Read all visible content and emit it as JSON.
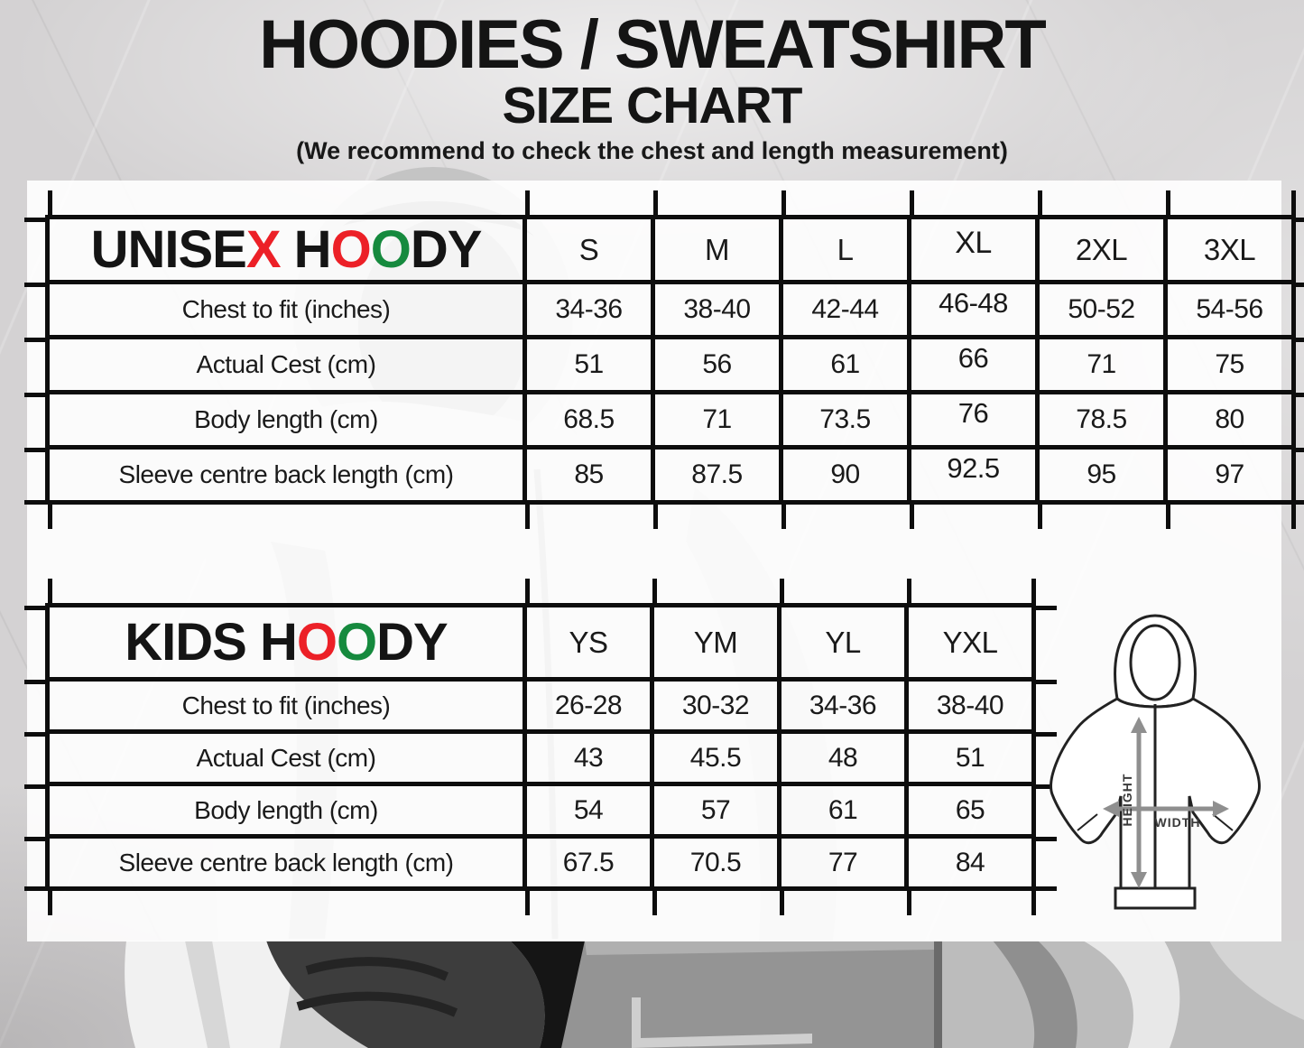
{
  "page": {
    "title_line1": "HOODIES / SWEATSHIRT",
    "title_line2": "SIZE CHART",
    "subtitle": "(We recommend to check the chest and length measurement)"
  },
  "colors": {
    "accent_red": "#ec2027",
    "accent_green": "#168a3e",
    "text_black": "#141414",
    "grid_line": "#0d0d0d",
    "arrow_gray": "#8f8f8f"
  },
  "chart_data": [
    {
      "type": "table",
      "title": "UNISEX HOODY",
      "title_segments": [
        {
          "t": "UNISE",
          "c": "#141414"
        },
        {
          "t": "X",
          "c": "#ec2027"
        },
        {
          "t": " H",
          "c": "#141414"
        },
        {
          "t": "O",
          "c": "#ec2027"
        },
        {
          "t": "O",
          "c": "#168a3e"
        },
        {
          "t": "DY",
          "c": "#141414"
        }
      ],
      "columns": [
        "S",
        "M",
        "L",
        "XL",
        "2XL",
        "3XL"
      ],
      "rows": [
        {
          "label": "Chest to fit (inches)",
          "values": [
            "34-36",
            "38-40",
            "42-44",
            "46-48",
            "50-52",
            "54-56"
          ]
        },
        {
          "label": "Actual Cest (cm)",
          "values": [
            "51",
            "56",
            "61",
            "66",
            "71",
            "75"
          ]
        },
        {
          "label": "Body length (cm)",
          "values": [
            "68.5",
            "71",
            "73.5",
            "76",
            "78.5",
            "80"
          ]
        },
        {
          "label": "Sleeve centre back length (cm)",
          "values": [
            "85",
            "87.5",
            "90",
            "92.5",
            "95",
            "97"
          ]
        }
      ]
    },
    {
      "type": "table",
      "title": "KIDS HOODY",
      "title_segments": [
        {
          "t": "KIDS H",
          "c": "#141414"
        },
        {
          "t": "O",
          "c": "#ec2027"
        },
        {
          "t": "O",
          "c": "#168a3e"
        },
        {
          "t": "DY",
          "c": "#141414"
        }
      ],
      "columns": [
        "YS",
        "YM",
        "YL",
        "YXL"
      ],
      "rows": [
        {
          "label": "Chest to fit (inches)",
          "values": [
            "26-28",
            "30-32",
            "34-36",
            "38-40"
          ]
        },
        {
          "label": "Actual Cest (cm)",
          "values": [
            "43",
            "45.5",
            "48",
            "51"
          ]
        },
        {
          "label": "Body length (cm)",
          "values": [
            "54",
            "57",
            "61",
            "65"
          ]
        },
        {
          "label": "Sleeve centre back length (cm)",
          "values": [
            "67.5",
            "70.5",
            "77",
            "84"
          ]
        }
      ]
    }
  ],
  "diagram": {
    "height_label": "HEIGHT",
    "width_label": "WIDTH"
  }
}
